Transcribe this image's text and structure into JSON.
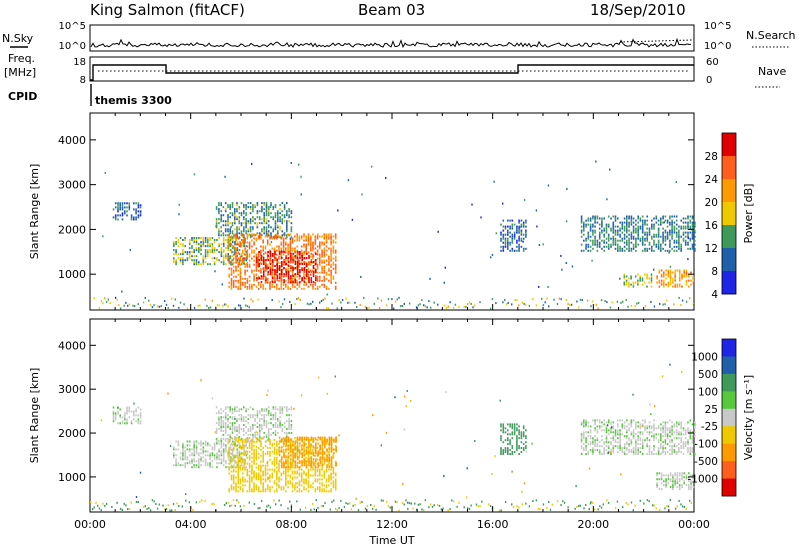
{
  "header": {
    "station": "King Salmon (fitACF)",
    "beam": "Beam 03",
    "date": "18/Sep/2010"
  },
  "top_panels": {
    "nsky_label": "N.Sky",
    "nsky_ticks": [
      "10^5",
      "10^0"
    ],
    "nsearch_label": "N.Search",
    "nsearch_ticks": [
      "10^5",
      "10^0"
    ],
    "freq_label": "Freq.",
    "freq_unit": "[MHz]",
    "freq_ticks": [
      "18",
      "8"
    ],
    "nave_label": "Nave",
    "nave_ticks": [
      "60",
      "0"
    ],
    "cpid_label": "CPID",
    "cpid_text": "themis 3300"
  },
  "chart_data": [
    {
      "type": "heatmap",
      "name": "power",
      "ylabel": "Slant Range [km]",
      "yticks": [
        1000,
        2000,
        3000,
        4000
      ],
      "ylim": [
        200,
        4600
      ],
      "xlim": [
        0,
        24
      ],
      "xtick_labels": [
        "00:00",
        "04:00",
        "08:00",
        "12:00",
        "16:00",
        "20:00",
        "00:00"
      ],
      "colorbar": {
        "label": "Power [dB]",
        "ticks": [
          "4",
          "8",
          "12",
          "16",
          "20",
          "24",
          "28"
        ],
        "colors": [
          "#1f24e6",
          "#2060ab",
          "#3d9a5b",
          "#f0c800",
          "#ff9900",
          "#ff5f1a",
          "#e00000"
        ]
      },
      "regions": [
        {
          "t": [
            0.9,
            2.0
          ],
          "r": [
            2200,
            2600
          ],
          "value": 6
        },
        {
          "t": [
            3.3,
            6.2
          ],
          "r": [
            1200,
            1800
          ],
          "value": 11
        },
        {
          "t": [
            5.0,
            8.0
          ],
          "r": [
            1800,
            2600
          ],
          "value": 9
        },
        {
          "t": [
            5.5,
            9.8
          ],
          "r": [
            650,
            1900
          ],
          "value": 20
        },
        {
          "t": [
            6.6,
            9.0
          ],
          "r": [
            800,
            1500
          ],
          "value": 26
        },
        {
          "t": [
            16.3,
            17.3
          ],
          "r": [
            1500,
            2200
          ],
          "value": 6
        },
        {
          "t": [
            19.5,
            24.0
          ],
          "r": [
            1500,
            2300
          ],
          "value": 8
        },
        {
          "t": [
            21.2,
            22.3
          ],
          "r": [
            700,
            1000
          ],
          "value": 12
        },
        {
          "t": [
            22.5,
            24.0
          ],
          "r": [
            700,
            1100
          ],
          "value": 18
        }
      ]
    },
    {
      "type": "heatmap",
      "name": "velocity",
      "ylabel": "Slant Range [km]",
      "yticks": [
        1000,
        2000,
        3000,
        4000
      ],
      "ylim": [
        200,
        4600
      ],
      "xlim": [
        0,
        24
      ],
      "xtick_labels": [
        "00:00",
        "04:00",
        "08:00",
        "12:00",
        "16:00",
        "20:00",
        "00:00"
      ],
      "xlabel": "Time UT",
      "colorbar": {
        "label": "Velocity [m s⁻¹]",
        "ticks": [
          "1000",
          "500",
          "100",
          "25",
          "-25",
          "-100",
          "-500",
          "-1000"
        ],
        "colors": [
          "#1f24e6",
          "#2060ab",
          "#3d9a5b",
          "#55c83c",
          "#c8c8c8",
          "#f0c800",
          "#ff9900",
          "#ff5f1a",
          "#e00000"
        ]
      },
      "regions": [
        {
          "t": [
            0.9,
            2.0
          ],
          "r": [
            2200,
            2600
          ],
          "value": 0
        },
        {
          "t": [
            3.3,
            6.2
          ],
          "r": [
            1200,
            1800
          ],
          "value": 0
        },
        {
          "t": [
            5.0,
            8.0
          ],
          "r": [
            1800,
            2600
          ],
          "value": 0
        },
        {
          "t": [
            5.5,
            9.8
          ],
          "r": [
            650,
            1900
          ],
          "value": -60
        },
        {
          "t": [
            7.5,
            9.8
          ],
          "r": [
            1200,
            1900
          ],
          "value": -300
        },
        {
          "t": [
            16.3,
            17.3
          ],
          "r": [
            1500,
            2200
          ],
          "value": 50
        },
        {
          "t": [
            19.5,
            24.0
          ],
          "r": [
            1500,
            2300
          ],
          "value": 0
        },
        {
          "t": [
            22.5,
            24.0
          ],
          "r": [
            700,
            1100
          ],
          "value": 0
        }
      ]
    }
  ]
}
